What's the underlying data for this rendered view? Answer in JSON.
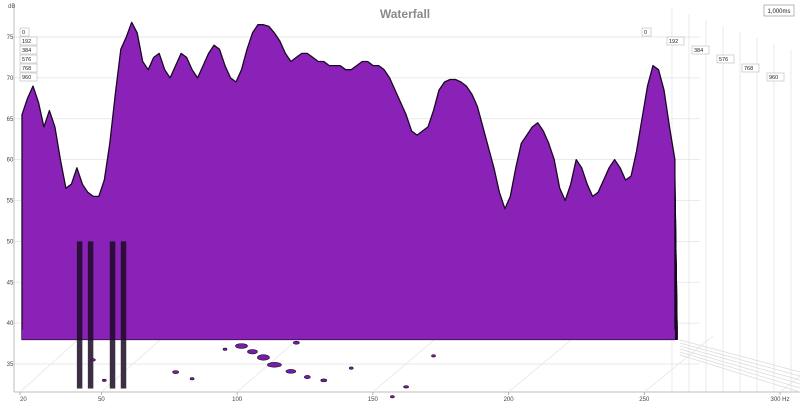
{
  "chart_data": {
    "type": "area",
    "title": "Waterfall",
    "time_label": "1,000ms",
    "y_unit": "dB",
    "x_unit": "Hz",
    "x_scale": "linear",
    "xlim": [
      20,
      300
    ],
    "ylim": [
      32,
      77
    ],
    "x_ticks": [
      {
        "value": 20,
        "label": "20"
      },
      {
        "value": 50,
        "label": "50"
      },
      {
        "value": 100,
        "label": "100"
      },
      {
        "value": 150,
        "label": "150"
      },
      {
        "value": 200,
        "label": "200"
      },
      {
        "value": 250,
        "label": "250"
      },
      {
        "value": 300,
        "label": "300 Hz"
      }
    ],
    "y_ticks": [
      35,
      40,
      45,
      50,
      55,
      60,
      65,
      70,
      75
    ],
    "slice_times_ms": [
      "0",
      "192",
      "384",
      "576",
      "768",
      "960"
    ],
    "fill_color": "#8a22b8",
    "edge_color": "#1a0824",
    "front_slice": {
      "x": [
        20,
        22,
        24,
        26,
        28,
        30,
        32,
        34,
        36,
        38,
        40,
        42,
        44,
        46,
        48,
        50,
        52,
        54,
        56,
        58,
        60,
        62,
        64,
        66,
        68,
        70,
        72,
        74,
        76,
        78,
        80,
        82,
        84,
        86,
        88,
        90,
        92,
        94,
        96,
        98,
        100,
        102,
        104,
        106,
        108,
        110,
        112,
        114,
        116,
        118,
        120,
        122,
        124,
        126,
        128,
        130,
        132,
        134,
        136,
        138,
        140,
        142,
        144,
        146,
        148,
        150,
        152,
        154,
        156,
        158,
        160,
        162,
        164,
        166,
        168,
        170,
        172,
        174,
        176,
        178,
        180,
        182,
        184,
        186,
        188,
        190,
        192,
        194,
        196,
        198,
        200,
        202,
        204,
        206,
        208,
        210,
        212,
        214,
        216,
        218,
        220,
        222,
        224,
        226,
        228,
        230,
        232,
        234,
        236,
        238,
        240,
        242,
        244,
        246,
        248,
        250,
        252,
        254,
        256,
        258
      ],
      "y": [
        65.5,
        67.5,
        69.0,
        67.0,
        64.0,
        66.0,
        64.0,
        60.0,
        56.5,
        57.0,
        59.0,
        57.0,
        56.0,
        55.5,
        55.5,
        57.5,
        62.0,
        68.0,
        73.5,
        75.0,
        76.8,
        75.5,
        72.0,
        71.0,
        72.5,
        73.0,
        71.0,
        70.0,
        71.5,
        73.0,
        72.5,
        71.0,
        70.0,
        71.5,
        73.0,
        74.0,
        73.5,
        71.5,
        70.0,
        69.5,
        71.0,
        73.5,
        75.5,
        76.5,
        76.5,
        76.3,
        75.5,
        74.5,
        73.0,
        72.0,
        72.5,
        73.0,
        73.0,
        72.5,
        72.0,
        72.0,
        71.5,
        71.5,
        71.5,
        71.0,
        71.0,
        71.5,
        72.0,
        72.0,
        71.5,
        71.5,
        71.0,
        70.0,
        68.5,
        67.0,
        65.5,
        63.5,
        63.0,
        63.5,
        64.0,
        66.0,
        68.5,
        69.5,
        69.8,
        69.8,
        69.5,
        69.0,
        68.0,
        66.5,
        64.0,
        61.5,
        59.0,
        56.0,
        54.0,
        55.5,
        59.0,
        62.0,
        63.0,
        64.0,
        64.5,
        63.5,
        62.0,
        60.0,
        56.5,
        55.0,
        57.0,
        60.0,
        59.0,
        57.0,
        55.5,
        56.0,
        57.5,
        59.0,
        60.0,
        59.0,
        57.5,
        58.0,
        61.0,
        65.0,
        69.0,
        71.5,
        71.0,
        68.5,
        64.0,
        60.0
      ]
    }
  }
}
